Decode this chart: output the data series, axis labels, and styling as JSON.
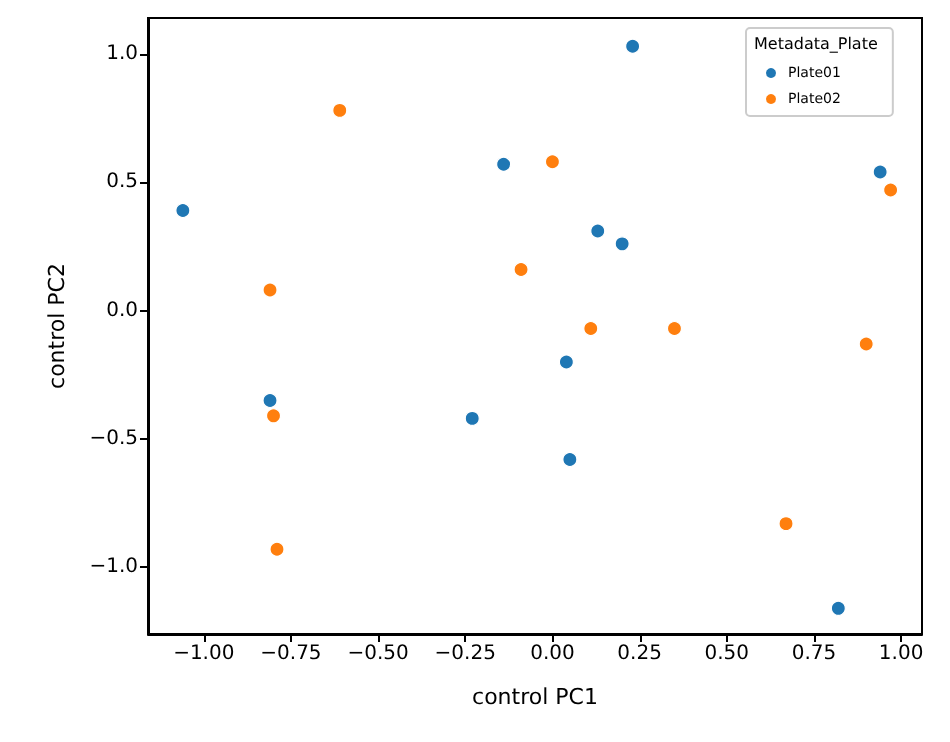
{
  "chart_data": {
    "type": "scatter",
    "xlabel": "control PC1",
    "ylabel": "control PC2",
    "legend_title": "Metadata_Plate",
    "legend": "top right",
    "grid": false,
    "marker": "circle",
    "xlim": [
      -1.16,
      1.06
    ],
    "ylim": [
      -1.26,
      1.14
    ],
    "xticks": [
      {
        "value": -1,
        "label": "−1.00"
      },
      {
        "value": -0.75,
        "label": "−0.75"
      },
      {
        "value": -0.5,
        "label": "−0.50"
      },
      {
        "value": -0.25,
        "label": "−0.25"
      },
      {
        "value": 0,
        "label": "0.00"
      },
      {
        "value": 0.25,
        "label": "0.25"
      },
      {
        "value": 0.5,
        "label": "0.50"
      },
      {
        "value": 0.75,
        "label": "0.75"
      },
      {
        "value": 1,
        "label": "1.00"
      }
    ],
    "yticks": [
      {
        "value": -1,
        "label": "−1.0"
      },
      {
        "value": -0.5,
        "label": "−0.5"
      },
      {
        "value": 0,
        "label": "0.0"
      },
      {
        "value": 0.5,
        "label": "0.5"
      },
      {
        "value": 1,
        "label": "1.0"
      }
    ],
    "series": [
      {
        "name": "Plate01",
        "color": "#1f77b4",
        "x": [
          -1.06,
          -0.14,
          -0.81,
          -0.23,
          0.23,
          0.13,
          0.2,
          0.04,
          0.05,
          0.82,
          0.94
        ],
        "values": [
          0.39,
          0.57,
          -0.35,
          -0.42,
          1.03,
          0.31,
          0.26,
          -0.2,
          -0.58,
          -1.16,
          0.54
        ]
      },
      {
        "name": "Plate02",
        "color": "#ff7f0e",
        "x": [
          -0.61,
          -0.81,
          -0.09,
          -0.8,
          -0.79,
          0,
          0.11,
          0.35,
          0.67,
          0.97,
          0.9
        ],
        "values": [
          0.78,
          0.08,
          0.16,
          -0.41,
          -0.93,
          0.58,
          -0.07,
          -0.07,
          -0.83,
          0.47,
          -0.13
        ]
      }
    ]
  }
}
